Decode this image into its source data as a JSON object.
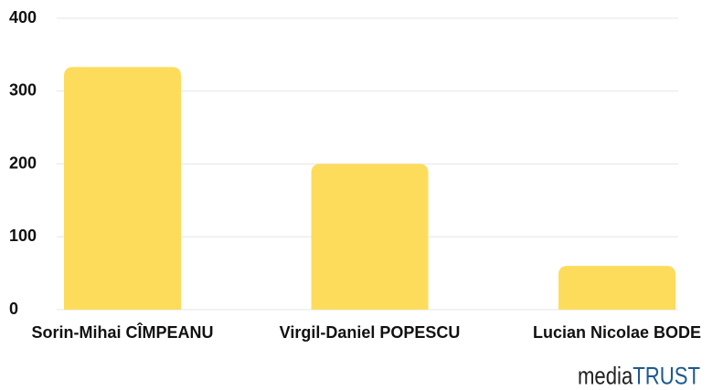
{
  "chart_data": {
    "type": "bar",
    "categories": [
      "Sorin-Mihai CÎMPEANU",
      "Virgil-Daniel POPESCU",
      "Lucian Nicolae BODE"
    ],
    "values": [
      333,
      200,
      60
    ],
    "color": "#fddc5c",
    "ylim": [
      0,
      400
    ],
    "yticks": [
      0,
      100,
      200,
      300,
      400
    ],
    "grid": true
  },
  "logo": {
    "media": "media",
    "trust": "TRUST"
  }
}
